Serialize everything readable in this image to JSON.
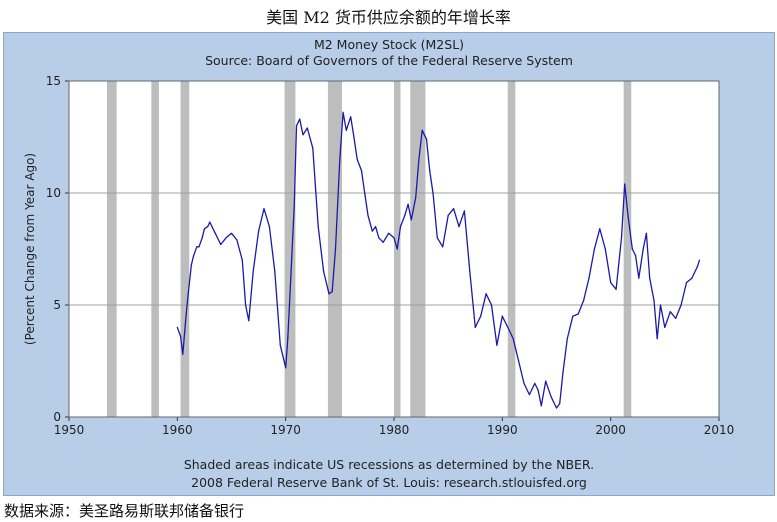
{
  "page": {
    "title": "美国 M2 货币供应余额的年增长率",
    "source": "数据来源：美圣路易斯联邦储备银行"
  },
  "chart_data": {
    "type": "line",
    "title": "M2 Money Stock (M2SL)",
    "subtitle": "Source: Board of Governors of the Federal Reserve System",
    "ylabel": "(Percent Change from Year Ago)",
    "xlabel": "",
    "xlim": [
      1950,
      2010
    ],
    "ylim": [
      0,
      15
    ],
    "xticks": [
      1950,
      1960,
      1970,
      1980,
      1990,
      2000,
      2010
    ],
    "yticks": [
      0,
      5,
      10,
      15
    ],
    "grid": true,
    "legend": "none",
    "footnotes": [
      "Shaded areas indicate US recessions as determined by the NBER.",
      "2008 Federal Reserve Bank of St. Louis: research.stlouisfed.org"
    ],
    "colors": {
      "line": "#1a1aa8",
      "recession": "#bdbdbd",
      "plot_bg": "#ffffff",
      "frame_bg": "#b8cde8",
      "grid": "#a0a0a0"
    },
    "recessions": [
      [
        1953.5,
        1954.4
      ],
      [
        1957.6,
        1958.3
      ],
      [
        1960.3,
        1961.1
      ],
      [
        1969.9,
        1970.9
      ],
      [
        1973.9,
        1975.2
      ],
      [
        1980.0,
        1980.6
      ],
      [
        1981.5,
        1982.9
      ],
      [
        1990.5,
        1991.2
      ],
      [
        2001.2,
        2001.9
      ]
    ],
    "series": [
      {
        "x": [
          1960.0,
          1960.3,
          1960.5,
          1960.8,
          1961.0,
          1961.3,
          1961.5,
          1961.8,
          1962.0,
          1962.3,
          1962.5,
          1962.8,
          1963.0,
          1963.5,
          1964.0,
          1964.5,
          1965.0,
          1965.5,
          1966.0,
          1966.3,
          1966.6,
          1967.0,
          1967.5,
          1968.0,
          1968.5,
          1969.0,
          1969.5,
          1970.0,
          1970.2,
          1970.5,
          1970.8,
          1971.0,
          1971.3,
          1971.6,
          1972.0,
          1972.5,
          1973.0,
          1973.5,
          1974.0,
          1974.3,
          1974.6,
          1975.0,
          1975.3,
          1975.6,
          1976.0,
          1976.3,
          1976.6,
          1977.0,
          1977.3,
          1977.6,
          1978.0,
          1978.3,
          1978.6,
          1979.0,
          1979.5,
          1980.0,
          1980.3,
          1980.6,
          1981.0,
          1981.3,
          1981.6,
          1982.0,
          1982.3,
          1982.6,
          1983.0,
          1983.3,
          1983.6,
          1984.0,
          1984.5,
          1985.0,
          1985.5,
          1986.0,
          1986.5,
          1987.0,
          1987.5,
          1988.0,
          1988.5,
          1989.0,
          1989.5,
          1990.0,
          1990.5,
          1991.0,
          1991.5,
          1992.0,
          1992.5,
          1993.0,
          1993.3,
          1993.6,
          1994.0,
          1994.5,
          1995.0,
          1995.3,
          1995.6,
          1996.0,
          1996.5,
          1997.0,
          1997.5,
          1998.0,
          1998.5,
          1999.0,
          1999.5,
          2000.0,
          2000.5,
          2001.0,
          2001.3,
          2001.6,
          2002.0,
          2002.3,
          2002.6,
          2003.0,
          2003.3,
          2003.6,
          2004.0,
          2004.3,
          2004.6,
          2005.0,
          2005.5,
          2006.0,
          2006.5,
          2007.0,
          2007.5,
          2008.0,
          2008.2
        ],
        "values": [
          4.0,
          3.6,
          2.8,
          4.5,
          5.5,
          6.8,
          7.2,
          7.6,
          7.6,
          8.0,
          8.4,
          8.5,
          8.7,
          8.2,
          7.7,
          8.0,
          8.2,
          7.9,
          7.0,
          5.0,
          4.3,
          6.5,
          8.3,
          9.3,
          8.5,
          6.5,
          3.2,
          2.2,
          3.5,
          6.5,
          9.5,
          13.0,
          13.3,
          12.6,
          12.9,
          12.0,
          8.5,
          6.5,
          5.5,
          5.6,
          7.5,
          11.5,
          13.6,
          12.8,
          13.4,
          12.5,
          11.5,
          11.0,
          10.0,
          9.0,
          8.3,
          8.5,
          8.0,
          7.8,
          8.2,
          8.0,
          7.5,
          8.5,
          9.0,
          9.5,
          8.8,
          9.8,
          11.5,
          12.8,
          12.4,
          11.0,
          10.0,
          8.0,
          7.6,
          9.0,
          9.3,
          8.5,
          9.2,
          6.5,
          4.0,
          4.5,
          5.5,
          5.0,
          3.2,
          4.5,
          4.0,
          3.5,
          2.5,
          1.5,
          1.0,
          1.5,
          1.2,
          0.5,
          1.6,
          0.9,
          0.4,
          0.6,
          2.0,
          3.5,
          4.5,
          4.6,
          5.2,
          6.2,
          7.5,
          8.4,
          7.5,
          6.0,
          5.7,
          8.0,
          10.4,
          9.0,
          7.5,
          7.2,
          6.2,
          7.5,
          8.2,
          6.2,
          5.2,
          3.5,
          5.0,
          4.0,
          4.7,
          4.4,
          5.0,
          6.0,
          6.2,
          6.7,
          7.0
        ]
      }
    ]
  }
}
